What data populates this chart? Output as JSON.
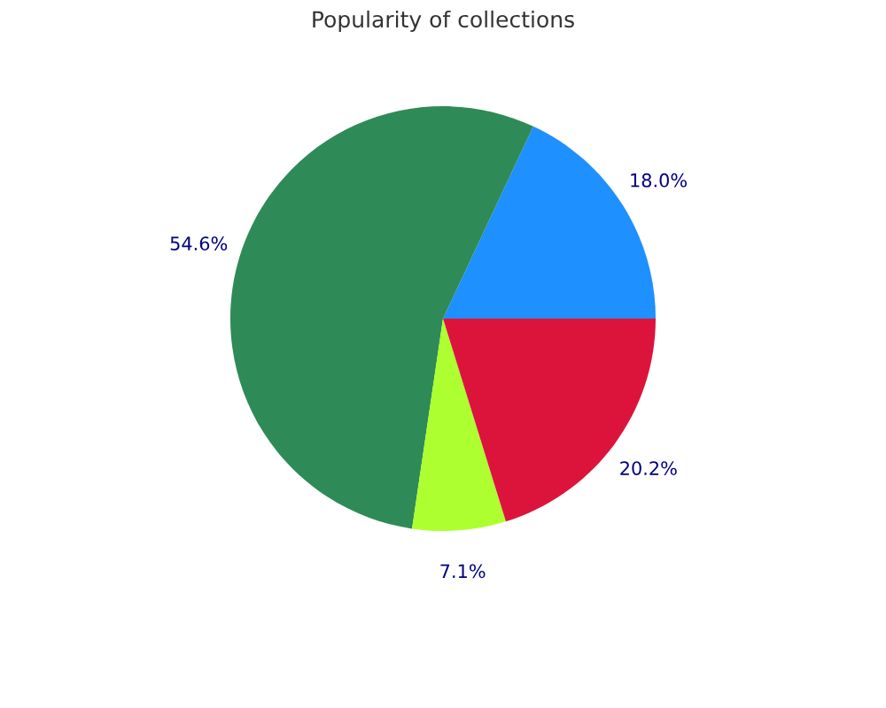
{
  "chart_data": {
    "type": "pie",
    "title": "Popularity of collections",
    "categories": [
      null,
      null,
      null,
      null
    ],
    "values": [
      18.0,
      54.6,
      7.1,
      20.2
    ],
    "value_labels": [
      "18.0%",
      "54.6%",
      "7.1%",
      "20.2%"
    ],
    "colors": [
      "#1e90ff",
      "#2e8b57",
      "#adff2f",
      "#dc143c"
    ]
  }
}
